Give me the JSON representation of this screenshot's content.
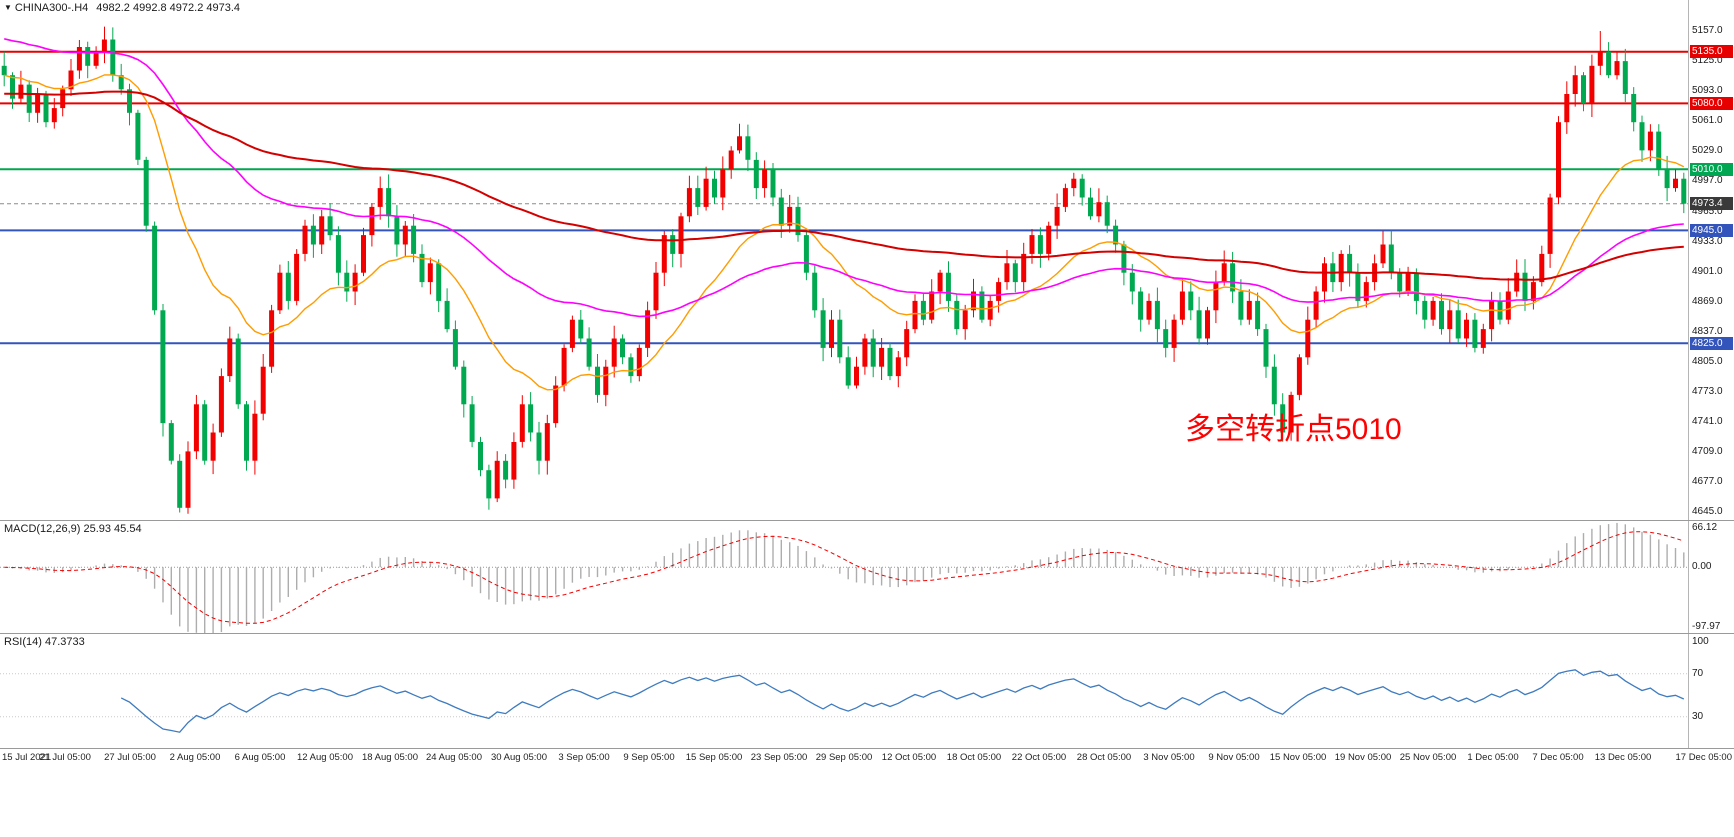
{
  "chart_data": [
    {
      "type": "candlestick",
      "symbol": "CHINA300-",
      "timeframe": "H4",
      "header": {
        "marker": "▼",
        "symbol": "CHINA300-.H4",
        "ohlc": "4982.2 4992.8 4972.2 4973.4"
      },
      "annotation": {
        "text": "多空转折点5010",
        "color": "#FF0000"
      },
      "y_domain": [
        4637,
        5190
      ],
      "y_ticks": [
        5157.0,
        5125.0,
        5093.0,
        5061.0,
        5029.0,
        4997.0,
        4965.0,
        4933.0,
        4901.0,
        4869.0,
        4837.0,
        4805.0,
        4773.0,
        4741.0,
        4709.0,
        4677.0,
        4645.0
      ],
      "levels": [
        {
          "value": 5135.0,
          "label": "5135.0",
          "color": "#E60000"
        },
        {
          "value": 5080.0,
          "label": "5080.0",
          "color": "#E60000"
        },
        {
          "value": 5010.0,
          "label": "5010.0",
          "color": "#00A651"
        },
        {
          "value": 4945.0,
          "label": "4945.0",
          "color": "#3355BB"
        },
        {
          "value": 4825.0,
          "label": "4825.0",
          "color": "#3355BB"
        }
      ],
      "current_price": {
        "value": 4973.4,
        "label": "4973.4",
        "line_color": "#8C8C8C",
        "badge_bg": "#3A3A3A"
      },
      "moving_averages": [
        {
          "name": "ma-fast-orange",
          "period": 20,
          "seed": 5110,
          "color": "#FF9C00",
          "width": 1.4
        },
        {
          "name": "ma-mid-magenta",
          "period": 60,
          "seed": 5150,
          "color": "#FF00FF",
          "width": 1.6
        },
        {
          "name": "ma-slow-red",
          "period": 144,
          "seed": 5090,
          "color": "#D40000",
          "width": 2
        }
      ],
      "candles": {
        "up_color": "#F20000",
        "down_color": "#00A94F",
        "open_first": 5120,
        "spike_high": {
          "index": 191,
          "value": 5157
        },
        "spike_low": {
          "index": 21,
          "value": 4645
        },
        "closes": [
          5110,
          5085,
          5100,
          5070,
          5090,
          5060,
          5075,
          5095,
          5115,
          5140,
          5120,
          5135,
          5148,
          5110,
          5095,
          5070,
          5020,
          4950,
          4860,
          4740,
          4700,
          4650,
          4710,
          4760,
          4700,
          4730,
          4790,
          4830,
          4760,
          4700,
          4750,
          4800,
          4860,
          4900,
          4870,
          4920,
          4950,
          4930,
          4960,
          4940,
          4900,
          4880,
          4900,
          4940,
          4970,
          4990,
          4960,
          4930,
          4950,
          4920,
          4890,
          4910,
          4870,
          4840,
          4800,
          4760,
          4720,
          4690,
          4660,
          4700,
          4680,
          4720,
          4760,
          4730,
          4700,
          4740,
          4780,
          4820,
          4850,
          4830,
          4800,
          4770,
          4800,
          4830,
          4810,
          4790,
          4820,
          4860,
          4900,
          4940,
          4920,
          4960,
          4990,
          4970,
          5000,
          4980,
          5010,
          5030,
          5045,
          5020,
          4990,
          5010,
          4980,
          4950,
          4970,
          4940,
          4900,
          4860,
          4820,
          4850,
          4810,
          4780,
          4800,
          4830,
          4800,
          4820,
          4790,
          4810,
          4840,
          4870,
          4850,
          4880,
          4900,
          4870,
          4840,
          4860,
          4880,
          4850,
          4870,
          4890,
          4910,
          4890,
          4920,
          4940,
          4920,
          4950,
          4970,
          4990,
          5000,
          4980,
          4960,
          4975,
          4950,
          4930,
          4900,
          4880,
          4850,
          4870,
          4840,
          4820,
          4850,
          4880,
          4860,
          4830,
          4860,
          4890,
          4910,
          4880,
          4850,
          4870,
          4840,
          4800,
          4760,
          4730,
          4770,
          4810,
          4850,
          4880,
          4910,
          4890,
          4920,
          4900,
          4870,
          4890,
          4910,
          4930,
          4900,
          4880,
          4900,
          4870,
          4850,
          4870,
          4840,
          4860,
          4830,
          4850,
          4820,
          4840,
          4870,
          4850,
          4880,
          4900,
          4870,
          4890,
          4920,
          4980,
          5060,
          5090,
          5110,
          5080,
          5120,
          5135,
          5110,
          5125,
          5090,
          5060,
          5030,
          5050,
          5010,
          4990,
          5000,
          4973.4
        ]
      }
    },
    {
      "type": "macd",
      "label": "MACD(12,26,9) 25.93 45.54",
      "display_values": {
        "macd": 25.93,
        "signal": 45.54
      },
      "fast": 12,
      "slow": 26,
      "signal": 9,
      "y_domain": [
        -104,
        72
      ],
      "ticks": [
        {
          "value": 66.12,
          "label": "66.12"
        },
        {
          "value": 0,
          "label": "0.00"
        },
        {
          "value": -97.97,
          "label": "-97.97"
        }
      ],
      "histogram_color": "#ADADAD",
      "signal_color": "#F20000"
    },
    {
      "type": "rsi",
      "label": "RSI(14) 47.3733",
      "display_value": 47.3733,
      "period": 14,
      "y_domain": [
        0,
        107
      ],
      "ticks": [
        {
          "value": 100,
          "label": "100"
        },
        {
          "value": 70,
          "label": "70"
        },
        {
          "value": 30,
          "label": "30"
        }
      ],
      "levels": [
        70,
        30
      ],
      "line_color": "#3E7BBF"
    }
  ],
  "x_axis": {
    "labels": [
      "15 Jul 2021",
      "21 Jul 05:00",
      "27 Jul 05:00",
      "2 Aug 05:00",
      "6 Aug 05:00",
      "12 Aug 05:00",
      "18 Aug 05:00",
      "24 Aug 05:00",
      "30 Aug 05:00",
      "3 Sep 05:00",
      "9 Sep 05:00",
      "15 Sep 05:00",
      "23 Sep 05:00",
      "29 Sep 05:00",
      "12 Oct 05:00",
      "18 Oct 05:00",
      "22 Oct 05:00",
      "28 Oct 05:00",
      "3 Nov 05:00",
      "9 Nov 05:00",
      "15 Nov 05:00",
      "19 Nov 05:00",
      "25 Nov 05:00",
      "1 Dec 05:00",
      "7 Dec 05:00",
      "13 Dec 05:00",
      "17 Dec 05:00"
    ]
  }
}
